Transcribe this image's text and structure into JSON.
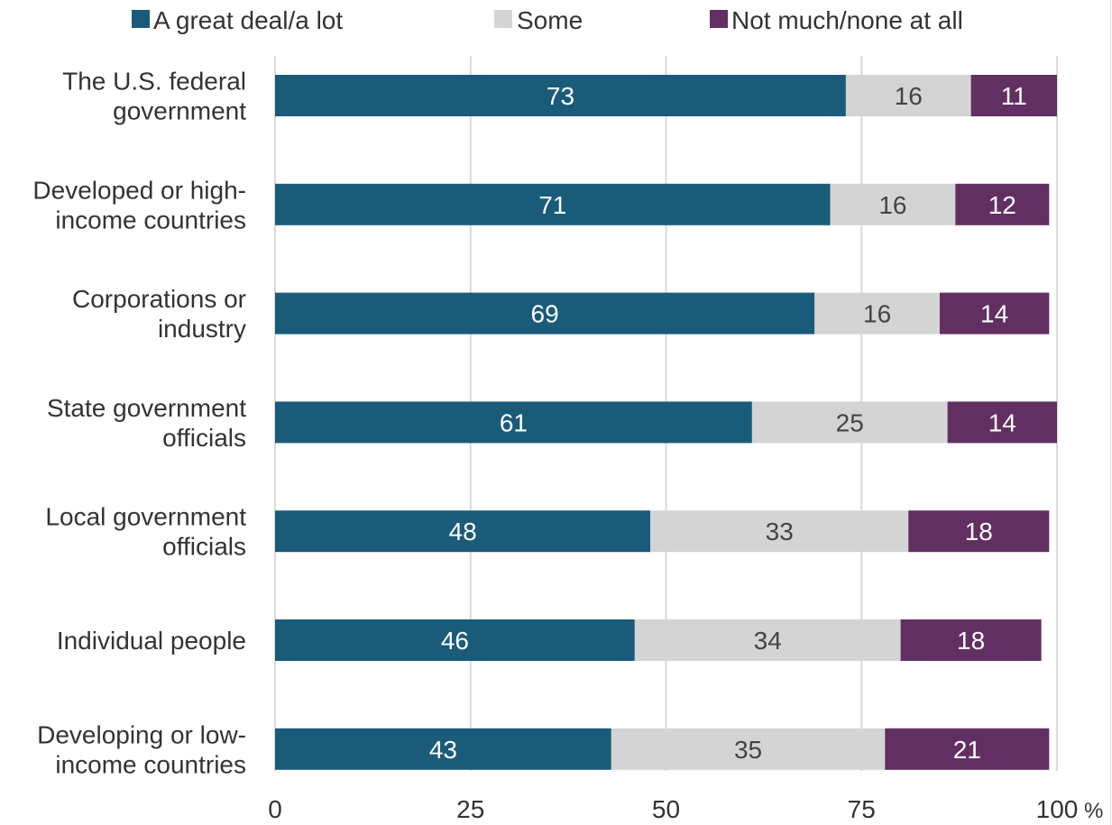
{
  "chart_data": {
    "type": "bar",
    "orientation": "horizontal",
    "stacked": true,
    "categories": [
      [
        "The U.S. federal",
        "government"
      ],
      [
        "Developed or high-",
        "income countries"
      ],
      [
        "Corporations or",
        "industry"
      ],
      [
        "State government",
        "officials"
      ],
      [
        "Local government",
        "officials"
      ],
      [
        "Individual people"
      ],
      [
        "Developing or low-",
        "income countries"
      ]
    ],
    "series": [
      {
        "name": "A great deal/a lot",
        "color": "#1a5b7a",
        "label_color": "#ffffff",
        "values": [
          73,
          71,
          69,
          61,
          48,
          46,
          43
        ]
      },
      {
        "name": "Some",
        "color": "#d4d4d4",
        "label_color": "#444444",
        "values": [
          16,
          16,
          16,
          25,
          33,
          34,
          35
        ]
      },
      {
        "name": "Not much/none at all",
        "color": "#622f62",
        "label_color": "#ffffff",
        "values": [
          11,
          12,
          14,
          14,
          18,
          18,
          21
        ]
      }
    ],
    "xlim": [
      0,
      100
    ],
    "xticks": [
      "0",
      "25",
      "50",
      "75",
      "100"
    ],
    "x_unit": "%",
    "grid": true,
    "legend_position": "top"
  }
}
